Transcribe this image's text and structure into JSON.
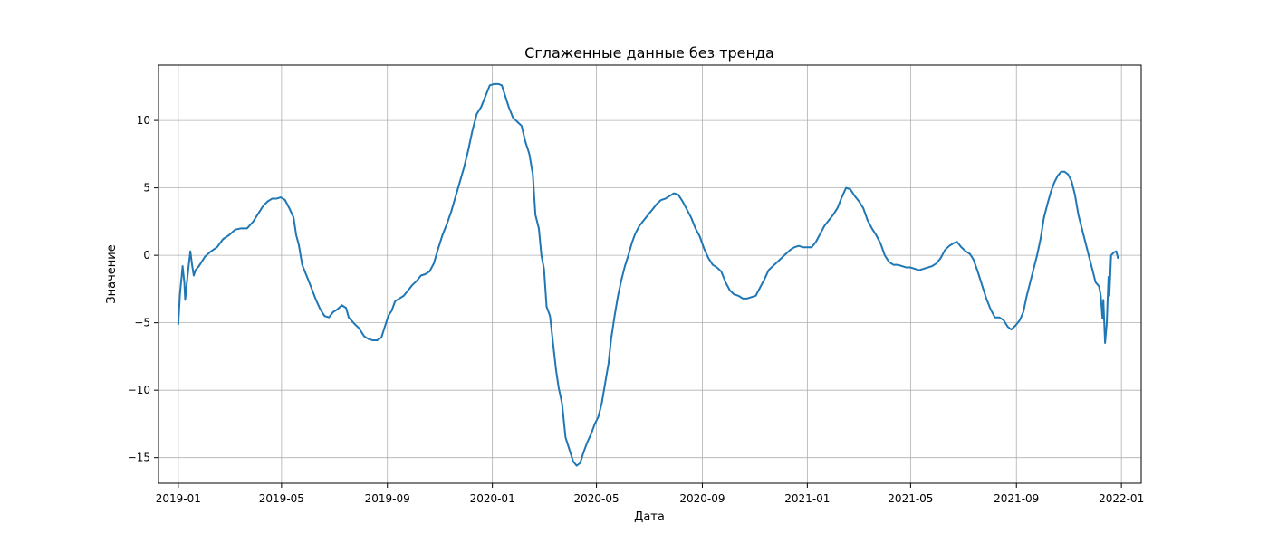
{
  "chart_data": {
    "type": "line",
    "title": "Сглаженные данные без тренда",
    "xlabel": "Дата",
    "ylabel": "Значение",
    "xlim": [
      "2018-12-09",
      "2022-01-24"
    ],
    "ylim": [
      -16.9,
      14.1
    ],
    "grid": true,
    "x_ticks": [
      "2019-01",
      "2019-05",
      "2019-09",
      "2020-01",
      "2020-05",
      "2020-09",
      "2021-01",
      "2021-05",
      "2021-09",
      "2022-01"
    ],
    "y_ticks": [
      -15,
      -10,
      -5,
      0,
      5,
      10
    ],
    "series": [
      {
        "color": "#1f77b4",
        "points": [
          [
            "2019-01-01",
            -5.1
          ],
          [
            "2019-01-03",
            -2.8
          ],
          [
            "2019-01-05",
            -1.5
          ],
          [
            "2019-01-06",
            -0.8
          ],
          [
            "2019-01-08",
            -2.0
          ],
          [
            "2019-01-09",
            -3.3
          ],
          [
            "2019-01-11",
            -2.0
          ],
          [
            "2019-01-13",
            -0.8
          ],
          [
            "2019-01-15",
            0.3
          ],
          [
            "2019-01-17",
            -0.7
          ],
          [
            "2019-01-19",
            -1.5
          ],
          [
            "2019-01-21",
            -1.1
          ],
          [
            "2019-01-25",
            -0.8
          ],
          [
            "2019-02-01",
            -0.1
          ],
          [
            "2019-02-08",
            0.3
          ],
          [
            "2019-02-15",
            0.6
          ],
          [
            "2019-02-22",
            1.2
          ],
          [
            "2019-03-01",
            1.5
          ],
          [
            "2019-03-08",
            1.9
          ],
          [
            "2019-03-15",
            2.0
          ],
          [
            "2019-03-22",
            2.0
          ],
          [
            "2019-03-29",
            2.5
          ],
          [
            "2019-04-05",
            3.2
          ],
          [
            "2019-04-10",
            3.7
          ],
          [
            "2019-04-15",
            4.0
          ],
          [
            "2019-04-20",
            4.2
          ],
          [
            "2019-04-25",
            4.2
          ],
          [
            "2019-04-30",
            4.3
          ],
          [
            "2019-05-05",
            4.1
          ],
          [
            "2019-05-10",
            3.5
          ],
          [
            "2019-05-15",
            2.8
          ],
          [
            "2019-05-18",
            1.5
          ],
          [
            "2019-05-21",
            0.8
          ],
          [
            "2019-05-25",
            -0.7
          ],
          [
            "2019-05-30",
            -1.5
          ],
          [
            "2019-06-04",
            -2.3
          ],
          [
            "2019-06-10",
            -3.3
          ],
          [
            "2019-06-15",
            -4.0
          ],
          [
            "2019-06-20",
            -4.5
          ],
          [
            "2019-06-25",
            -4.6
          ],
          [
            "2019-06-30",
            -4.2
          ],
          [
            "2019-07-05",
            -4.0
          ],
          [
            "2019-07-10",
            -3.7
          ],
          [
            "2019-07-15",
            -3.9
          ],
          [
            "2019-07-18",
            -4.6
          ],
          [
            "2019-07-25",
            -5.1
          ],
          [
            "2019-07-30",
            -5.4
          ],
          [
            "2019-08-05",
            -6.0
          ],
          [
            "2019-08-10",
            -6.2
          ],
          [
            "2019-08-15",
            -6.3
          ],
          [
            "2019-08-20",
            -6.3
          ],
          [
            "2019-08-25",
            -6.1
          ],
          [
            "2019-08-29",
            -5.3
          ],
          [
            "2019-09-02",
            -4.5
          ],
          [
            "2019-09-06",
            -4.1
          ],
          [
            "2019-09-10",
            -3.4
          ],
          [
            "2019-09-15",
            -3.2
          ],
          [
            "2019-09-20",
            -3.0
          ],
          [
            "2019-09-25",
            -2.6
          ],
          [
            "2019-09-30",
            -2.2
          ],
          [
            "2019-10-05",
            -1.9
          ],
          [
            "2019-10-10",
            -1.5
          ],
          [
            "2019-10-15",
            -1.4
          ],
          [
            "2019-10-20",
            -1.2
          ],
          [
            "2019-10-25",
            -0.6
          ],
          [
            "2019-10-30",
            0.5
          ],
          [
            "2019-11-04",
            1.5
          ],
          [
            "2019-11-09",
            2.3
          ],
          [
            "2019-11-14",
            3.2
          ],
          [
            "2019-11-19",
            4.3
          ],
          [
            "2019-11-24",
            5.4
          ],
          [
            "2019-11-29",
            6.5
          ],
          [
            "2019-12-04",
            7.8
          ],
          [
            "2019-12-09",
            9.3
          ],
          [
            "2019-12-14",
            10.5
          ],
          [
            "2019-12-19",
            11.0
          ],
          [
            "2019-12-24",
            11.8
          ],
          [
            "2019-12-29",
            12.6
          ],
          [
            "2020-01-03",
            12.7
          ],
          [
            "2020-01-08",
            12.7
          ],
          [
            "2020-01-12",
            12.6
          ],
          [
            "2020-01-16",
            11.8
          ],
          [
            "2020-01-20",
            11.0
          ],
          [
            "2020-01-25",
            10.2
          ],
          [
            "2020-01-30",
            9.9
          ],
          [
            "2020-02-04",
            9.6
          ],
          [
            "2020-02-08",
            8.5
          ],
          [
            "2020-02-13",
            7.5
          ],
          [
            "2020-02-17",
            6.0
          ],
          [
            "2020-02-20",
            3.0
          ],
          [
            "2020-02-24",
            2.0
          ],
          [
            "2020-02-27",
            0.0
          ],
          [
            "2020-03-01",
            -1.0
          ],
          [
            "2020-03-04",
            -3.8
          ],
          [
            "2020-03-08",
            -4.5
          ],
          [
            "2020-03-12",
            -6.8
          ],
          [
            "2020-03-15",
            -8.5
          ],
          [
            "2020-03-18",
            -9.8
          ],
          [
            "2020-03-22",
            -11.0
          ],
          [
            "2020-03-26",
            -13.5
          ],
          [
            "2020-03-31",
            -14.5
          ],
          [
            "2020-04-04",
            -15.3
          ],
          [
            "2020-04-08",
            -15.6
          ],
          [
            "2020-04-12",
            -15.4
          ],
          [
            "2020-04-16",
            -14.6
          ],
          [
            "2020-04-20",
            -13.9
          ],
          [
            "2020-04-25",
            -13.2
          ],
          [
            "2020-04-29",
            -12.5
          ],
          [
            "2020-05-03",
            -12.0
          ],
          [
            "2020-05-07",
            -11.0
          ],
          [
            "2020-05-11",
            -9.5
          ],
          [
            "2020-05-15",
            -8.0
          ],
          [
            "2020-05-18",
            -6.2
          ],
          [
            "2020-05-22",
            -4.5
          ],
          [
            "2020-05-26",
            -3.0
          ],
          [
            "2020-05-30",
            -1.8
          ],
          [
            "2020-06-03",
            -0.8
          ],
          [
            "2020-06-07",
            0.0
          ],
          [
            "2020-06-11",
            0.9
          ],
          [
            "2020-06-15",
            1.6
          ],
          [
            "2020-06-20",
            2.2
          ],
          [
            "2020-06-25",
            2.6
          ],
          [
            "2020-06-30",
            3.0
          ],
          [
            "2020-07-05",
            3.4
          ],
          [
            "2020-07-10",
            3.8
          ],
          [
            "2020-07-15",
            4.1
          ],
          [
            "2020-07-20",
            4.2
          ],
          [
            "2020-07-25",
            4.4
          ],
          [
            "2020-07-30",
            4.6
          ],
          [
            "2020-08-04",
            4.5
          ],
          [
            "2020-08-09",
            4.0
          ],
          [
            "2020-08-14",
            3.4
          ],
          [
            "2020-08-19",
            2.8
          ],
          [
            "2020-08-24",
            2.0
          ],
          [
            "2020-08-29",
            1.4
          ],
          [
            "2020-09-03",
            0.5
          ],
          [
            "2020-09-08",
            -0.2
          ],
          [
            "2020-09-13",
            -0.7
          ],
          [
            "2020-09-18",
            -0.9
          ],
          [
            "2020-09-23",
            -1.2
          ],
          [
            "2020-09-28",
            -2.0
          ],
          [
            "2020-10-03",
            -2.6
          ],
          [
            "2020-10-08",
            -2.9
          ],
          [
            "2020-10-13",
            -3.0
          ],
          [
            "2020-10-18",
            -3.2
          ],
          [
            "2020-10-23",
            -3.2
          ],
          [
            "2020-10-28",
            -3.1
          ],
          [
            "2020-11-02",
            -3.0
          ],
          [
            "2020-11-07",
            -2.4
          ],
          [
            "2020-11-12",
            -1.8
          ],
          [
            "2020-11-17",
            -1.1
          ],
          [
            "2020-11-22",
            -0.8
          ],
          [
            "2020-11-27",
            -0.5
          ],
          [
            "2020-12-02",
            -0.2
          ],
          [
            "2020-12-07",
            0.1
          ],
          [
            "2020-12-12",
            0.4
          ],
          [
            "2020-12-17",
            0.6
          ],
          [
            "2020-12-22",
            0.7
          ],
          [
            "2020-12-27",
            0.6
          ],
          [
            "2021-01-01",
            0.6
          ],
          [
            "2021-01-06",
            0.6
          ],
          [
            "2021-01-11",
            1.0
          ],
          [
            "2021-01-16",
            1.6
          ],
          [
            "2021-01-21",
            2.2
          ],
          [
            "2021-01-26",
            2.6
          ],
          [
            "2021-01-31",
            3.0
          ],
          [
            "2021-02-05",
            3.5
          ],
          [
            "2021-02-10",
            4.3
          ],
          [
            "2021-02-15",
            5.0
          ],
          [
            "2021-02-20",
            4.9
          ],
          [
            "2021-02-25",
            4.4
          ],
          [
            "2021-03-02",
            4.0
          ],
          [
            "2021-03-07",
            3.5
          ],
          [
            "2021-03-12",
            2.6
          ],
          [
            "2021-03-17",
            2.0
          ],
          [
            "2021-03-22",
            1.5
          ],
          [
            "2021-03-27",
            0.9
          ],
          [
            "2021-04-01",
            0.0
          ],
          [
            "2021-04-06",
            -0.5
          ],
          [
            "2021-04-11",
            -0.7
          ],
          [
            "2021-04-16",
            -0.7
          ],
          [
            "2021-04-21",
            -0.8
          ],
          [
            "2021-04-26",
            -0.9
          ],
          [
            "2021-05-01",
            -0.9
          ],
          [
            "2021-05-06",
            -1.0
          ],
          [
            "2021-05-11",
            -1.1
          ],
          [
            "2021-05-16",
            -1.0
          ],
          [
            "2021-05-21",
            -0.9
          ],
          [
            "2021-05-26",
            -0.8
          ],
          [
            "2021-05-31",
            -0.6
          ],
          [
            "2021-06-05",
            -0.2
          ],
          [
            "2021-06-10",
            0.4
          ],
          [
            "2021-06-15",
            0.7
          ],
          [
            "2021-06-20",
            0.9
          ],
          [
            "2021-06-24",
            1.0
          ],
          [
            "2021-06-29",
            0.6
          ],
          [
            "2021-07-04",
            0.3
          ],
          [
            "2021-07-09",
            0.1
          ],
          [
            "2021-07-13",
            -0.3
          ],
          [
            "2021-07-18",
            -1.2
          ],
          [
            "2021-07-23",
            -2.2
          ],
          [
            "2021-07-28",
            -3.2
          ],
          [
            "2021-08-02",
            -4.0
          ],
          [
            "2021-08-07",
            -4.6
          ],
          [
            "2021-08-12",
            -4.6
          ],
          [
            "2021-08-17",
            -4.8
          ],
          [
            "2021-08-22",
            -5.3
          ],
          [
            "2021-08-26",
            -5.5
          ],
          [
            "2021-08-31",
            -5.2
          ],
          [
            "2021-09-05",
            -4.8
          ],
          [
            "2021-09-09",
            -4.2
          ],
          [
            "2021-09-13",
            -3.0
          ],
          [
            "2021-09-17",
            -2.0
          ],
          [
            "2021-09-21",
            -1.0
          ],
          [
            "2021-09-25",
            0.0
          ],
          [
            "2021-09-29",
            1.2
          ],
          [
            "2021-10-03",
            2.8
          ],
          [
            "2021-10-07",
            3.8
          ],
          [
            "2021-10-11",
            4.7
          ],
          [
            "2021-10-15",
            5.4
          ],
          [
            "2021-10-19",
            5.9
          ],
          [
            "2021-10-23",
            6.2
          ],
          [
            "2021-10-27",
            6.2
          ],
          [
            "2021-10-31",
            6.0
          ],
          [
            "2021-11-04",
            5.5
          ],
          [
            "2021-11-08",
            4.5
          ],
          [
            "2021-11-12",
            3.0
          ],
          [
            "2021-11-16",
            2.0
          ],
          [
            "2021-11-20",
            1.0
          ],
          [
            "2021-11-24",
            0.0
          ],
          [
            "2021-11-28",
            -1.0
          ],
          [
            "2021-12-02",
            -2.0
          ],
          [
            "2021-12-06",
            -2.3
          ],
          [
            "2021-12-08",
            -3.0
          ],
          [
            "2021-12-10",
            -4.7
          ],
          [
            "2021-12-11",
            -3.3
          ],
          [
            "2021-12-13",
            -6.5
          ],
          [
            "2021-12-15",
            -5.0
          ],
          [
            "2021-12-17",
            -1.6
          ],
          [
            "2021-12-18",
            -3.0
          ],
          [
            "2021-12-20",
            0.0
          ],
          [
            "2021-12-23",
            0.2
          ],
          [
            "2021-12-26",
            0.3
          ],
          [
            "2021-12-28",
            -0.2
          ]
        ]
      }
    ]
  }
}
